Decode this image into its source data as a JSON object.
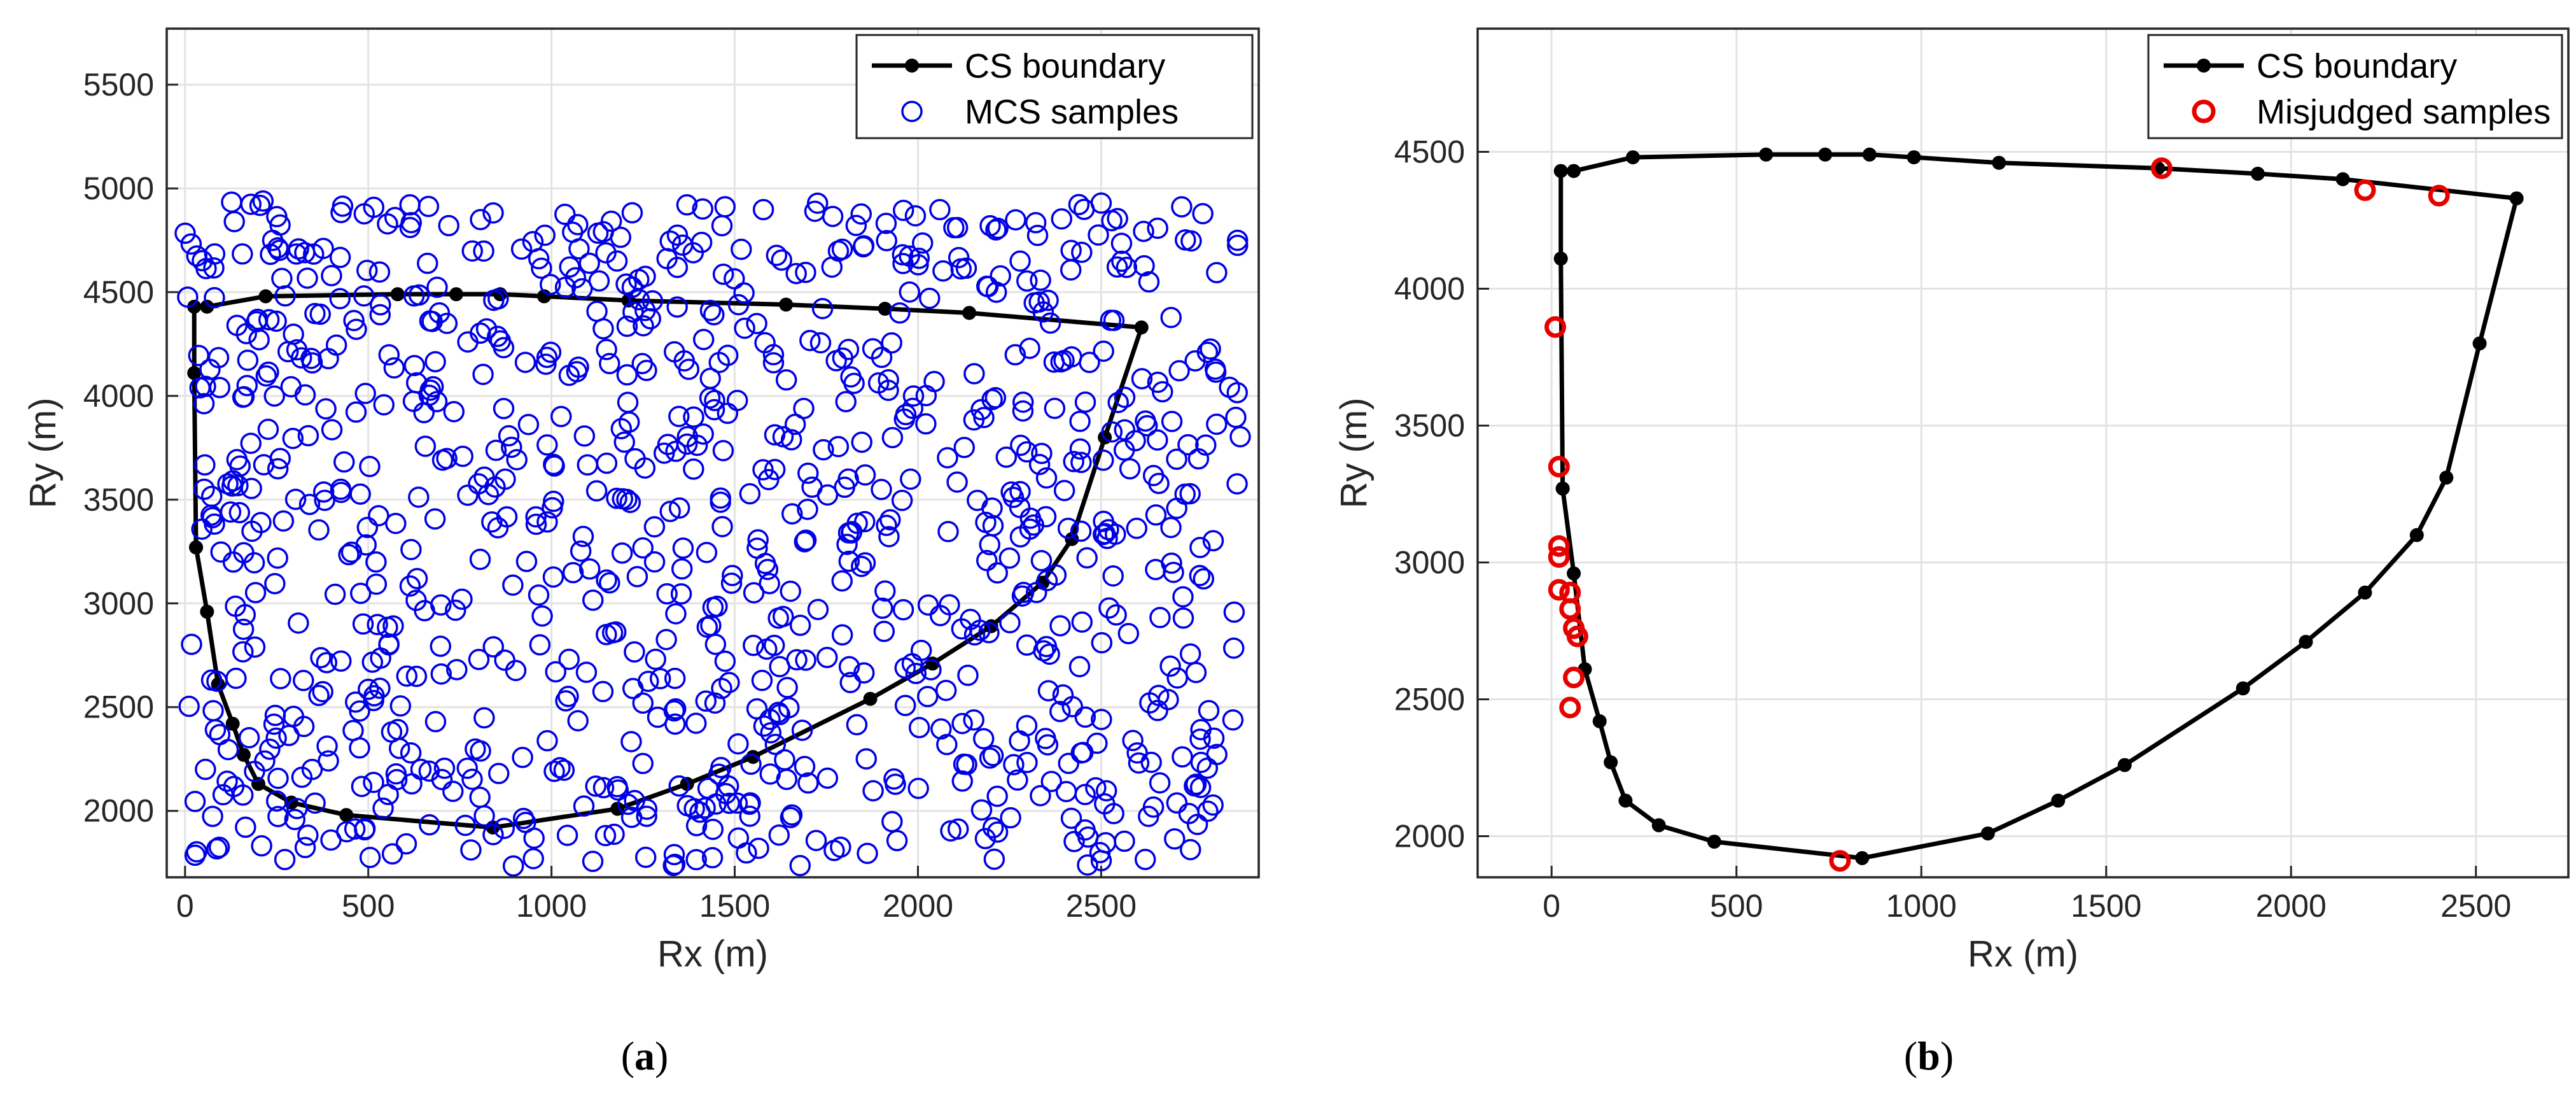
{
  "chart_data": [
    {
      "type": "scatter",
      "panel_label": "a",
      "xlabel": "Rx (m)",
      "ylabel": "Ry (m)",
      "xlim": [
        -50,
        2930
      ],
      "ylim": [
        1680,
        5770
      ],
      "xticks": [
        0,
        500,
        1000,
        1500,
        2000,
        2500
      ],
      "yticks": [
        2000,
        2500,
        3000,
        3500,
        4000,
        4500,
        5000,
        5500
      ],
      "grid": true,
      "legend": {
        "placement": "top-right",
        "entries": [
          "CS boundary",
          "MCS samples"
        ]
      },
      "series": [
        {
          "name": "CS boundary",
          "kind": "line-marker",
          "color": "#000000",
          "x": [
            30,
            25,
            25,
            60,
            220,
            580,
            740,
            860,
            980,
            1210,
            1640,
            1910,
            2140,
            2610,
            2510,
            2420,
            2340,
            2200,
            2040,
            1870,
            1550,
            1370,
            1180,
            840,
            440,
            290,
            200,
            160,
            130,
            90,
            60,
            30
          ],
          "y": [
            3270,
            4110,
            4430,
            4430,
            4480,
            4490,
            4490,
            4490,
            4480,
            4460,
            4440,
            4420,
            4400,
            4330,
            3800,
            3310,
            3100,
            2890,
            2710,
            2540,
            2260,
            2130,
            2010,
            1920,
            1980,
            2040,
            2130,
            2270,
            2420,
            2610,
            2960,
            3270
          ]
        },
        {
          "name": "MCS samples",
          "kind": "scatter-open",
          "color": "#0000e6",
          "generated": {
            "count": 1000,
            "x_range": [
              0,
              2880
            ],
            "y_range": [
              1730,
              4950
            ],
            "distribution": "uniform"
          }
        }
      ]
    },
    {
      "type": "scatter",
      "panel_label": "b",
      "xlabel": "Rx (m)",
      "ylabel": "Ry (m)",
      "xlim": [
        -200,
        2750
      ],
      "ylim": [
        1850,
        4950
      ],
      "xticks": [
        0,
        500,
        1000,
        1500,
        2000,
        2500
      ],
      "yticks": [
        2000,
        2500,
        3000,
        3500,
        4000,
        4500
      ],
      "grid": true,
      "legend": {
        "placement": "top-right",
        "entries": [
          "CS boundary",
          "Misjudged samples"
        ]
      },
      "series": [
        {
          "name": "CS boundary",
          "kind": "line-marker",
          "color": "#000000",
          "x": [
            30,
            25,
            25,
            60,
            220,
            580,
            740,
            860,
            980,
            1210,
            1640,
            1910,
            2140,
            2610,
            2510,
            2420,
            2340,
            2200,
            2040,
            1870,
            1550,
            1370,
            1180,
            840,
            440,
            290,
            200,
            160,
            130,
            90,
            60,
            30
          ],
          "y": [
            3270,
            4110,
            4430,
            4430,
            4480,
            4490,
            4490,
            4490,
            4480,
            4460,
            4440,
            4420,
            4400,
            4330,
            3800,
            3310,
            3100,
            2890,
            2710,
            2540,
            2260,
            2130,
            2010,
            1920,
            1980,
            2040,
            2130,
            2270,
            2420,
            2610,
            2960,
            3270
          ]
        },
        {
          "name": "Misjudged samples",
          "kind": "scatter-open",
          "color": "#e60000",
          "x": [
            10,
            20,
            20,
            20,
            20,
            50,
            50,
            60,
            70,
            60,
            50,
            780,
            1650,
            2200,
            2400
          ],
          "y": [
            3860,
            3350,
            3060,
            3020,
            2900,
            2890,
            2830,
            2760,
            2730,
            2580,
            2470,
            1910,
            4440,
            4360,
            4340
          ]
        }
      ]
    }
  ]
}
